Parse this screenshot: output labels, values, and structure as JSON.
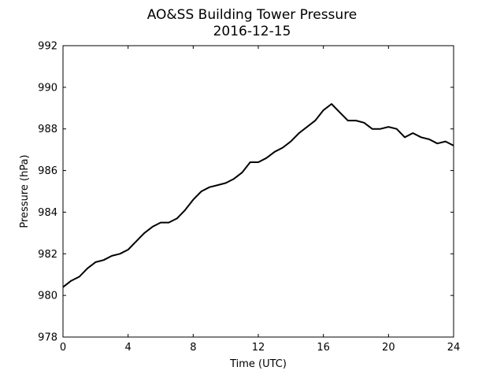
{
  "chart_data": {
    "type": "line",
    "title": "AO&SS Building Tower Pressure",
    "subtitle": "2016-12-15",
    "xlabel": "Time (UTC)",
    "ylabel": "Pressure (hPa)",
    "xlim": [
      0,
      24
    ],
    "ylim": [
      978,
      992
    ],
    "xticks": [
      0,
      4,
      8,
      12,
      16,
      20,
      24
    ],
    "yticks": [
      978,
      980,
      982,
      984,
      986,
      988,
      990,
      992
    ],
    "grid": false,
    "line_color": "#000000",
    "series": [
      {
        "x": [
          0,
          0.5,
          1,
          1.5,
          2,
          2.5,
          3,
          3.5,
          4,
          4.5,
          5,
          5.5,
          6,
          6.5,
          7,
          7.5,
          8,
          8.5,
          9,
          9.5,
          10,
          10.5,
          11,
          11.5,
          12,
          12.5,
          13,
          13.5,
          14,
          14.5,
          15,
          15.5,
          16,
          16.5,
          17,
          17.5,
          18,
          18.5,
          19,
          19.5,
          20,
          20.5,
          21,
          21.5,
          22,
          22.5,
          23,
          23.5,
          24
        ],
        "y": [
          980.4,
          980.7,
          980.9,
          981.3,
          981.6,
          981.7,
          981.9,
          982.0,
          982.2,
          982.6,
          983.0,
          983.3,
          983.5,
          983.5,
          983.7,
          984.1,
          984.6,
          985.0,
          985.2,
          985.3,
          985.4,
          985.6,
          985.9,
          986.4,
          986.4,
          986.6,
          986.9,
          987.1,
          987.4,
          987.8,
          988.1,
          988.4,
          988.9,
          989.2,
          988.8,
          988.4,
          988.4,
          988.3,
          988.0,
          988.0,
          988.1,
          988.0,
          987.6,
          987.8,
          987.6,
          987.5,
          987.3,
          987.4,
          987.2
        ]
      }
    ]
  }
}
